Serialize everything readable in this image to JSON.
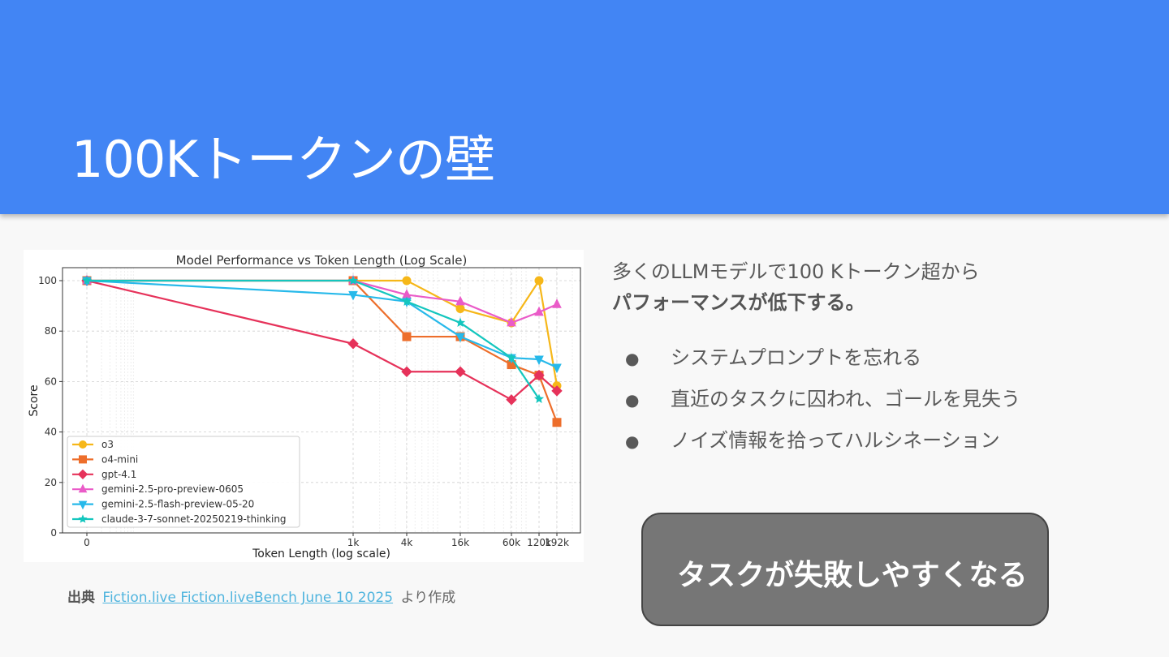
{
  "slide": {
    "title": "100Kトークンの壁"
  },
  "source": {
    "label": "出典",
    "link_text": "Fiction.live Fiction.liveBench June 10 2025",
    "suffix": "より作成"
  },
  "intro": {
    "line1": "多くのLLMモデルで100 Kトークン超から",
    "line2": "パフォーマンスが低下する。"
  },
  "bullets": [
    "システムプロンプトを忘れる",
    "直近のタスクに囚われ、ゴールを見失う",
    "ノイズ情報を拾ってハルシネーション"
  ],
  "bullet_marker": "●",
  "callout": {
    "text": "タスクが失敗しやすくなる"
  },
  "chart_data": {
    "type": "line",
    "title": "Model Performance vs Token Length (Log Scale)",
    "xlabel": "Token Length (log scale)",
    "ylabel": "Score",
    "x_scale": "log",
    "categories": [
      "0",
      "1k",
      "4k",
      "16k",
      "60k",
      "120k",
      "192k"
    ],
    "x_tick_labels": [
      "0",
      "1k",
      "4k",
      "16k",
      "60k",
      "120k",
      "192k"
    ],
    "ylim": [
      0,
      100
    ],
    "y_ticks": [
      0,
      20,
      40,
      60,
      80,
      100
    ],
    "grid": true,
    "legend_position": "lower-left",
    "series": [
      {
        "name": "o3",
        "color": "#f6b719",
        "marker": "circle",
        "values": [
          100,
          100,
          100,
          88.9,
          83.3,
          100,
          58.3
        ]
      },
      {
        "name": "o4-mini",
        "color": "#ed6e2b",
        "marker": "square",
        "values": [
          100,
          100,
          77.8,
          77.8,
          66.7,
          62.5,
          43.8
        ]
      },
      {
        "name": "gpt-4.1",
        "color": "#e6325a",
        "marker": "diamond",
        "values": [
          100,
          75,
          63.9,
          63.9,
          52.8,
          62.5,
          56.3
        ]
      },
      {
        "name": "gemini-2.5-pro-preview-0605",
        "color": "#ea5bc8",
        "marker": "triangle-up",
        "values": [
          100,
          100,
          94.4,
          91.7,
          83.3,
          87.5,
          90.6
        ]
      },
      {
        "name": "gemini-2.5-flash-preview-05-20",
        "color": "#27b9ea",
        "marker": "triangle-down",
        "values": [
          100,
          94.4,
          91.7,
          77.8,
          69.4,
          68.8,
          65.6
        ]
      },
      {
        "name": "claude-3-7-sonnet-20250219-thinking",
        "color": "#14c6be",
        "marker": "star",
        "values": [
          100,
          100,
          91.7,
          83.3,
          69.4,
          53.1,
          null
        ]
      }
    ]
  }
}
